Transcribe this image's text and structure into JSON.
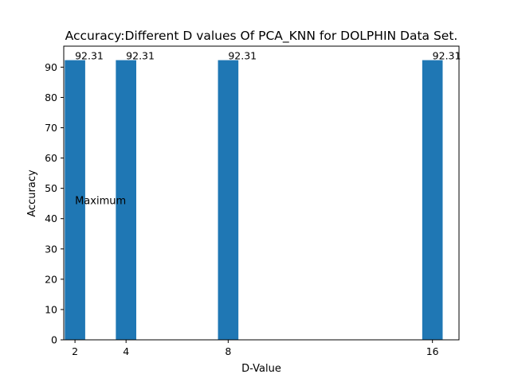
{
  "chart_data": {
    "type": "bar",
    "title": "Accuracy:Different D values Of PCA_KNN for DOLPHIN Data Set.",
    "xlabel": "D-Value",
    "ylabel": "Accuracy",
    "x": [
      2,
      4,
      8,
      16
    ],
    "values": [
      92.31,
      92.31,
      92.31,
      92.31
    ],
    "data_labels": [
      "92.31",
      "92.31",
      "92.31",
      "92.31"
    ],
    "xticks": [
      "2",
      "4",
      "8",
      "16"
    ],
    "yticks": [
      0,
      10,
      20,
      30,
      40,
      50,
      60,
      70,
      80,
      90
    ],
    "xlim": [
      1.56,
      17.04
    ],
    "ylim": [
      0,
      96.93
    ],
    "bar_color": "#1f77b4",
    "grid": false,
    "annotations": [
      {
        "text": "Maximum",
        "x": 2,
        "y": 46.15
      }
    ]
  }
}
